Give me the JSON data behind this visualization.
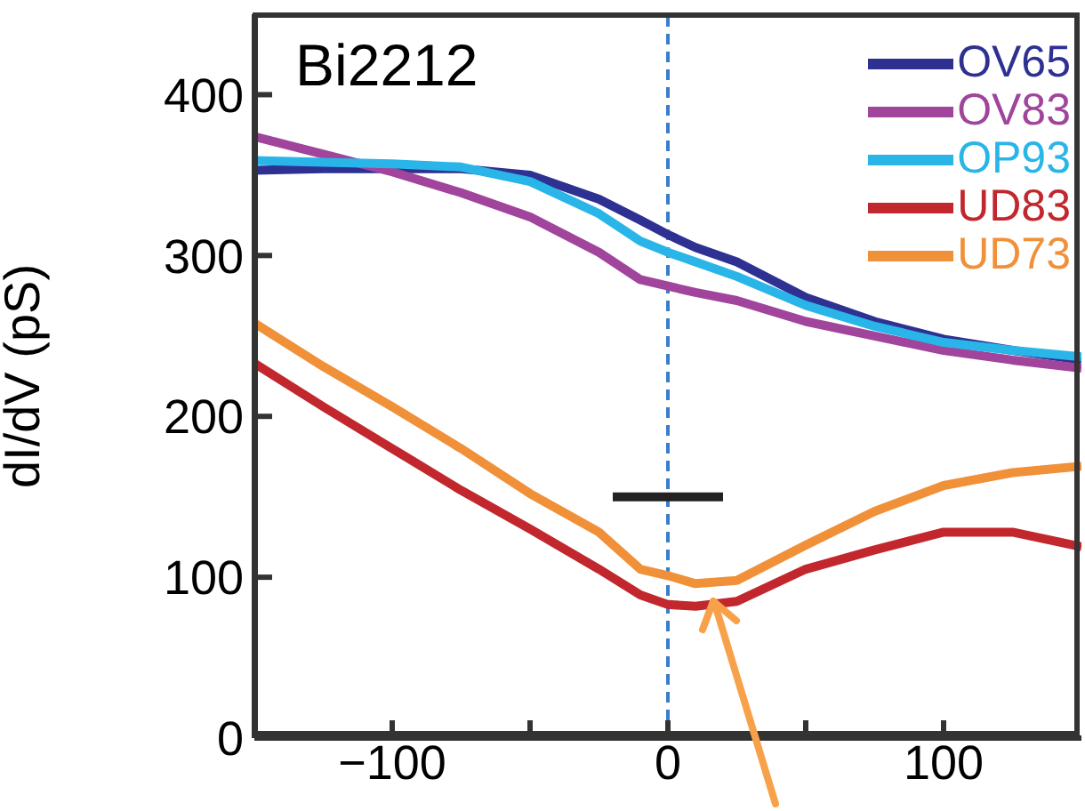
{
  "chart_data": {
    "type": "line",
    "ylabel": "dI/dV (pS)",
    "annotations": [
      "Bi2212"
    ],
    "x": [
      -150,
      -125,
      -100,
      -75,
      -50,
      -25,
      -10,
      0,
      10,
      25,
      50,
      75,
      100,
      125,
      150
    ],
    "xlim": [
      -150,
      150
    ],
    "xticks": [
      {
        "value": -100,
        "label": "−100"
      },
      {
        "value": -50,
        "label": null
      },
      0,
      {
        "value": 50,
        "label": null
      },
      100
    ],
    "ylim": [
      0,
      450
    ],
    "yticks": [
      0,
      100,
      200,
      300,
      400
    ],
    "series": [
      {
        "name": "OV65",
        "color": "#2e3192",
        "values": [
          353,
          354,
          354,
          354,
          350,
          335,
          322,
          313,
          305,
          296,
          274,
          259,
          248,
          241,
          235
        ]
      },
      {
        "name": "OV83",
        "color": "#a0449c",
        "values": [
          374,
          363,
          352,
          339,
          324,
          302,
          285,
          281,
          277,
          272,
          259,
          250,
          241,
          235,
          230
        ]
      },
      {
        "name": "OP93",
        "color": "#29b5e8",
        "values": [
          359,
          358,
          357,
          355,
          346,
          326,
          309,
          302,
          296,
          287,
          269,
          256,
          246,
          241,
          237
        ]
      },
      {
        "name": "UD83",
        "color": "#c1272d",
        "values": [
          233,
          206,
          180,
          154,
          130,
          105,
          89,
          83,
          82,
          85,
          105,
          117,
          128,
          128,
          119
        ]
      },
      {
        "name": "UD73",
        "color": "#f0913a",
        "values": [
          258,
          231,
          206,
          180,
          152,
          128,
          105,
          101,
          96,
          98,
          120,
          141,
          157,
          165,
          169
        ]
      },
      {
        "color": "#222222",
        "x": [
          -20,
          20
        ],
        "values": [
          150,
          150
        ]
      }
    ],
    "ref_lines": [
      {
        "axis": "x",
        "value": 0,
        "color": "#3a7dc9",
        "line_style": "dashed"
      }
    ],
    "legend": "top right",
    "grid": false,
    "marker": "none",
    "line_style": "solid"
  }
}
